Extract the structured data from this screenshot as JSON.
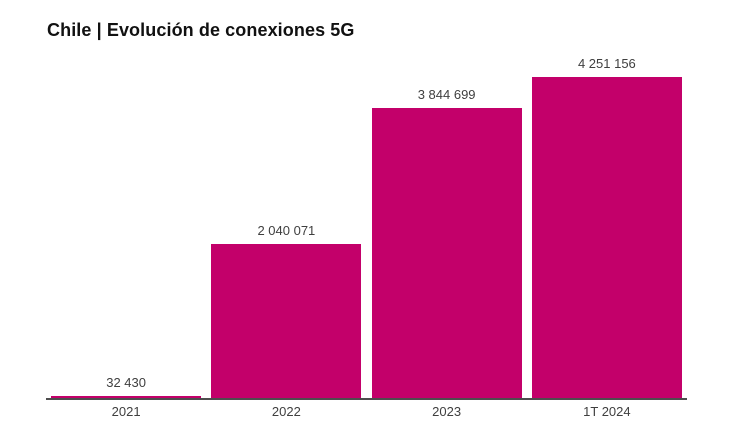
{
  "chart_data": {
    "type": "bar",
    "title": "Chile | Evolución de conexiones 5G",
    "categories": [
      "2021",
      "2022",
      "2023",
      "1T 2024"
    ],
    "values": [
      32430,
      2040071,
      3844699,
      4251156
    ],
    "value_labels": [
      "32 430",
      "2 040 071",
      "3 844 699",
      "4 251 156"
    ],
    "xlabel": "",
    "ylabel": "",
    "ylim": [
      0,
      4500000
    ],
    "grid": false,
    "legend": "none",
    "colors": {
      "bar": "#c3006a",
      "value_label": "#3f3f3f",
      "tick_label": "#3f3f3f",
      "axis_line": "#4d4d4d",
      "title": "#111111",
      "background": "#ffffff"
    }
  }
}
